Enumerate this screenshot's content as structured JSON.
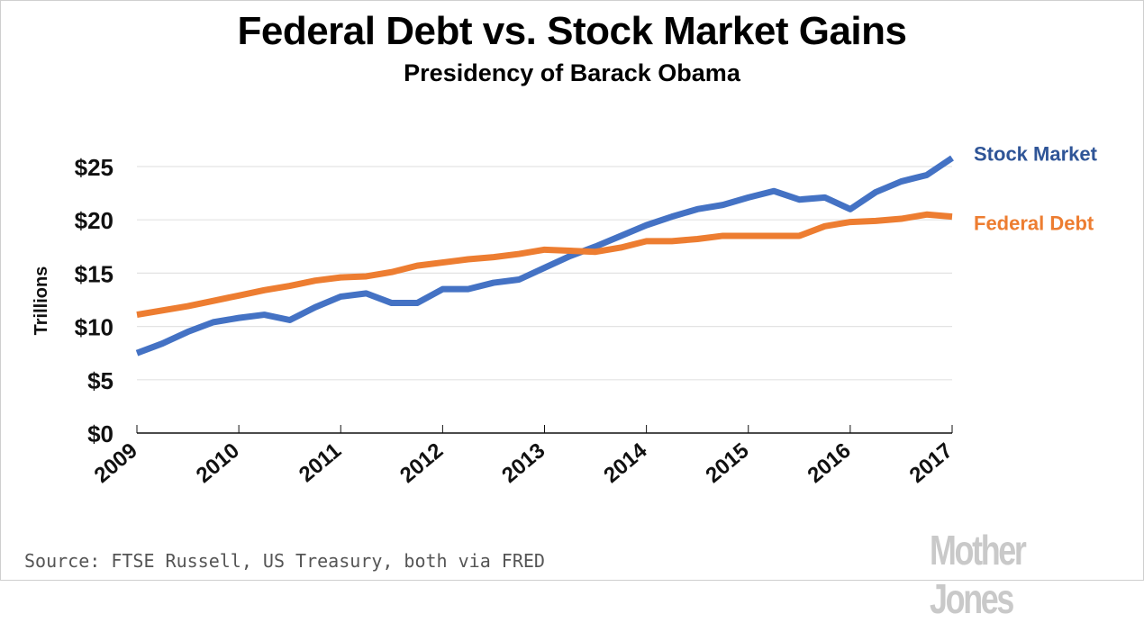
{
  "header": {
    "title": "Federal Debt vs. Stock Market Gains",
    "subtitle": "Presidency of Barack Obama"
  },
  "footer": {
    "source": "Source: FTSE Russell, US Treasury, both via FRED",
    "logo": "Mother Jones"
  },
  "chart_data": {
    "type": "line",
    "title": "Federal Debt vs. Stock Market Gains",
    "subtitle": "Presidency of Barack Obama",
    "xlabel": "",
    "ylabel": "Trillions",
    "ylim": [
      0,
      25
    ],
    "xlim": [
      2009,
      2017
    ],
    "yticks": [
      0,
      5,
      10,
      15,
      20,
      25
    ],
    "ytick_labels": [
      "$0",
      "$5",
      "$10",
      "$15",
      "$20",
      "$25"
    ],
    "xticks": [
      2009,
      2010,
      2011,
      2012,
      2013,
      2014,
      2015,
      2016,
      2017
    ],
    "xtick_labels": [
      "2009",
      "2010",
      "2011",
      "2012",
      "2013",
      "2014",
      "2015",
      "2016",
      "2017"
    ],
    "grid": "horizontal",
    "legend": "right (inline labels at line ends)",
    "x": [
      2009.0,
      2009.25,
      2009.5,
      2009.75,
      2010.0,
      2010.25,
      2010.5,
      2010.75,
      2011.0,
      2011.25,
      2011.5,
      2011.75,
      2012.0,
      2012.25,
      2012.5,
      2012.75,
      2013.0,
      2013.25,
      2013.5,
      2013.75,
      2014.0,
      2014.25,
      2014.5,
      2014.75,
      2015.0,
      2015.25,
      2015.5,
      2015.75,
      2016.0,
      2016.25,
      2016.5,
      2016.75,
      2017.0
    ],
    "series": [
      {
        "name": "Stock Market",
        "color": "#4472c4",
        "label_color": "#2f5597",
        "values": [
          7.5,
          8.4,
          9.5,
          10.4,
          10.8,
          11.1,
          10.6,
          11.8,
          12.8,
          13.1,
          12.2,
          12.2,
          13.5,
          13.5,
          14.1,
          14.4,
          15.5,
          16.6,
          17.5,
          18.5,
          19.5,
          20.3,
          21.0,
          21.4,
          22.1,
          22.7,
          21.9,
          22.1,
          21.0,
          22.6,
          23.6,
          24.2,
          25.8
        ]
      },
      {
        "name": "Federal Debt",
        "color": "#ed7d31",
        "label_color": "#ed7d31",
        "values": [
          11.1,
          11.5,
          11.9,
          12.4,
          12.9,
          13.4,
          13.8,
          14.3,
          14.6,
          14.7,
          15.1,
          15.7,
          16.0,
          16.3,
          16.5,
          16.8,
          17.2,
          17.1,
          17.0,
          17.4,
          18.0,
          18.0,
          18.2,
          18.5,
          18.5,
          18.5,
          18.5,
          19.4,
          19.8,
          19.9,
          20.1,
          20.5,
          20.3
        ]
      }
    ]
  }
}
